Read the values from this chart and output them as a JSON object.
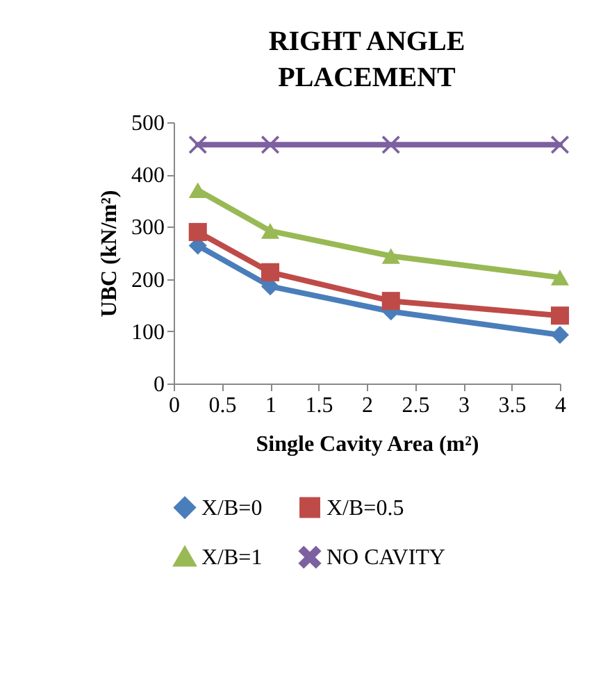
{
  "chart_data": {
    "type": "line",
    "title": "RIGHT ANGLE PLACEMENT",
    "xlabel": "Single Cavity Area (m²)",
    "ylabel": "UBC (kN/m²)",
    "x": [
      0.25,
      1,
      2.25,
      4
    ],
    "xlim": [
      0,
      4
    ],
    "xticks": [
      0,
      0.5,
      1,
      1.5,
      2,
      2.5,
      3,
      3.5,
      4
    ],
    "ylim": [
      0,
      500
    ],
    "yticks": [
      0,
      100,
      200,
      300,
      400,
      500
    ],
    "grid": false,
    "legend": "bottom",
    "series": [
      {
        "name": "X/B=0",
        "color": "#4a7ebb",
        "marker": "diamond",
        "values": [
          264,
          186,
          138,
          93
        ]
      },
      {
        "name": "X/B=0.5",
        "color": "#be4b48",
        "marker": "square",
        "values": [
          290,
          213,
          158,
          130
        ]
      },
      {
        "name": "X/B=1",
        "color": "#98b954",
        "marker": "triangle",
        "values": [
          370,
          292,
          244,
          203
        ]
      },
      {
        "name": "NO CAVITY",
        "color": "#7d60a0",
        "marker": "cross",
        "values": [
          457,
          457,
          457,
          457
        ]
      }
    ]
  }
}
